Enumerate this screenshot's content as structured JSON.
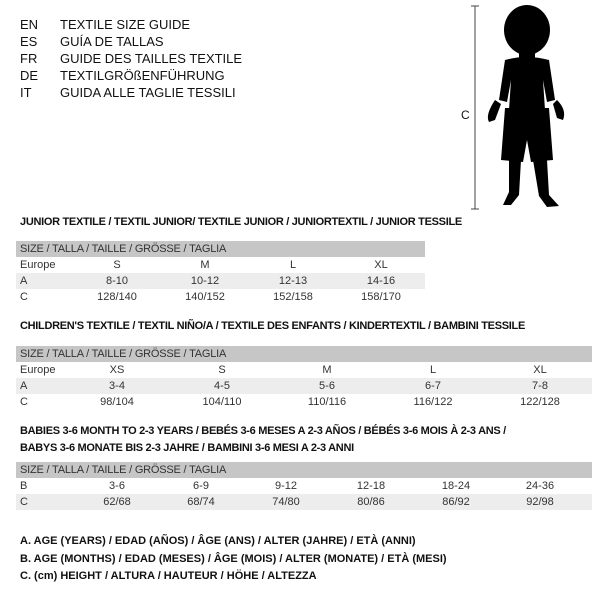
{
  "languages": [
    {
      "code": "EN",
      "text": "TEXTILE SIZE GUIDE"
    },
    {
      "code": "ES",
      "text": "GUÍA DE TALLAS"
    },
    {
      "code": "FR",
      "text": "GUIDE DES TAILLES TEXTILE"
    },
    {
      "code": "DE",
      "text": "TEXTILGRÖßENFÜHRUNG"
    },
    {
      "code": "IT",
      "text": "GUIDA ALLE TAGLIE TESSILI"
    }
  ],
  "figure": {
    "measure_label": "C"
  },
  "tables": [
    {
      "title": "JUNIOR TEXTILE / TEXTIL JUNIOR/ TEXTILE JUNIOR / JUNIORTEXTIL / JUNIOR TESSILE",
      "header": "SIZE / TALLA / TAILLE / GRÖSSE / TAGLIA",
      "rows": [
        {
          "label": "Europe",
          "cells": [
            "S",
            "M",
            "L",
            "XL"
          ]
        },
        {
          "label": "A",
          "cells": [
            "8-10",
            "10-12",
            "12-13",
            "14-16"
          ]
        },
        {
          "label": "C",
          "cells": [
            "128/140",
            "140/152",
            "152/158",
            "158/170"
          ]
        }
      ]
    },
    {
      "title": "CHILDREN'S TEXTILE / TEXTIL NIÑO/A / TEXTILE DES ENFANTS / KINDERTEXTIL / BAMBINI TESSILE",
      "header": "SIZE / TALLA / TAILLE / GRÖSSE / TAGLIA",
      "rows": [
        {
          "label": "Europe",
          "cells": [
            "XS",
            "S",
            "M",
            "L",
            "XL"
          ]
        },
        {
          "label": "A",
          "cells": [
            "3-4",
            "4-5",
            "5-6",
            "6-7",
            "7-8"
          ]
        },
        {
          "label": "C",
          "cells": [
            "98/104",
            "104/110",
            "110/116",
            "116/122",
            "122/128"
          ]
        }
      ]
    },
    {
      "title": "BABIES 3-6 MONTH TO 2-3 YEARS / BEBÉS 3-6 MESES A 2-3 AÑOS / BÉBÉS 3-6 MOIS À 2-3 ANS /",
      "title2": "BABYS 3-6 MONATE BIS 2-3 JAHRE / BAMBINI 3-6 MESI A 2-3 ANNI",
      "header": "SIZE / TALLA / TAILLE / GRÖSSE / TAGLIA",
      "rows": [
        {
          "label": "B",
          "cells": [
            "3-6",
            "6-9",
            "9-12",
            "12-18",
            "18-24",
            "24-36"
          ]
        },
        {
          "label": "C",
          "cells": [
            "62/68",
            "68/74",
            "74/80",
            "80/86",
            "86/92",
            "92/98"
          ]
        }
      ]
    }
  ],
  "legend": [
    "A. AGE (YEARS) / EDAD (AÑOS) / ÂGE (ANS) / ALTER (JAHRE) / ETÀ (ANNI)",
    "B. AGE (MONTHS) / EDAD (MESES) / ÂGE (MOIS) / ALTER (MONATE) / ETÀ (MESI)",
    "C. (cm) HEIGHT / ALTURA / HAUTEUR / HÖHE / ALTEZZA"
  ]
}
